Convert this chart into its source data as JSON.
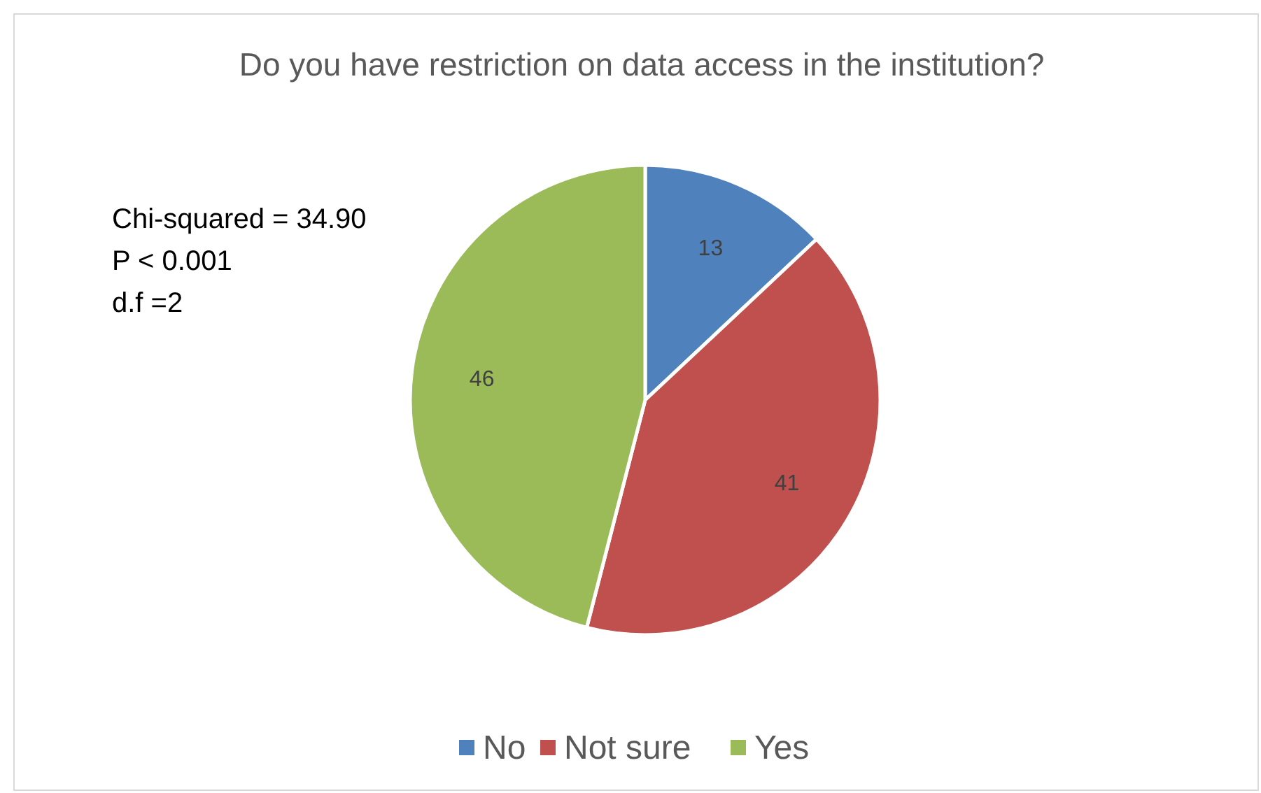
{
  "chart_data": {
    "type": "pie",
    "title": "Do you have restriction on data access in the institution?",
    "categories": [
      "No",
      "Not sure",
      "Yes"
    ],
    "values": [
      13,
      41,
      46
    ],
    "colors": [
      "#4f81bd",
      "#c0504d",
      "#9bbb59"
    ],
    "data_labels": true,
    "legend": "bottom",
    "annotations": [
      "Chi-squared = 34.90",
      "P < 0.001",
      "d.f =2"
    ]
  }
}
